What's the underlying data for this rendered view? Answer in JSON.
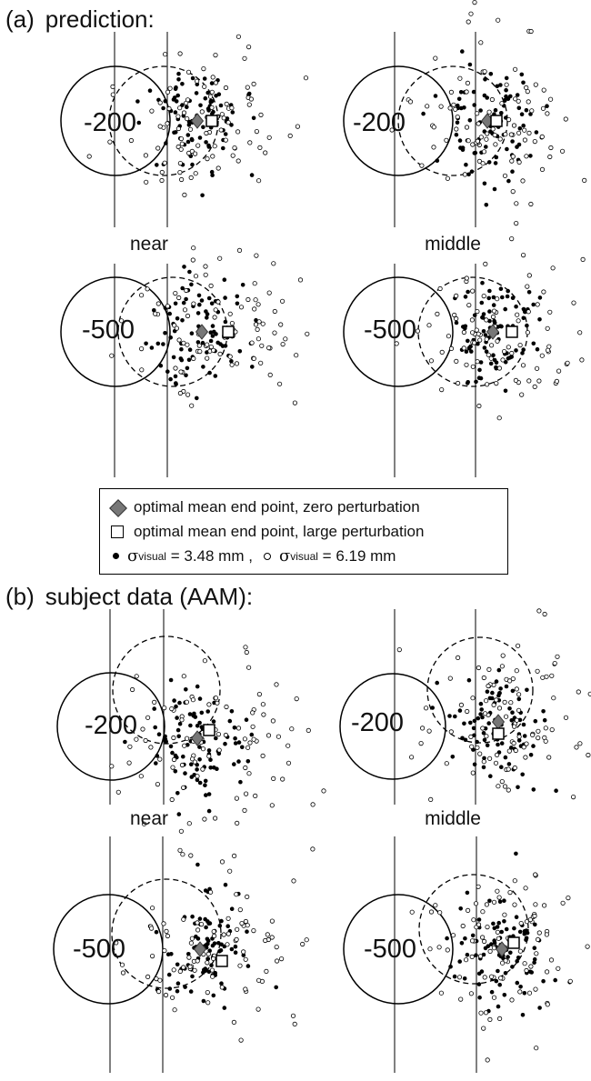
{
  "figure": {
    "section_a": {
      "tag": "(a)",
      "title": "prediction:"
    },
    "section_b": {
      "tag": "(b)",
      "title": "subject data (AAM):"
    },
    "panel_labels": {
      "a_top_left": "-200",
      "a_top_right": "-200",
      "a_bottom_left": "-500",
      "a_bottom_right": "-500",
      "b_top_left": "-200",
      "b_top_right": "-200",
      "b_bottom_left": "-500",
      "b_bottom_right": "-500"
    },
    "column_labels": {
      "a_left": "near",
      "a_right": "middle",
      "b_left": "near",
      "b_right": "middle"
    },
    "legend": {
      "zero_perturbation": "optimal mean end point, zero perturbation",
      "large_perturbation": "optimal mean end point, large perturbation",
      "sigma": "σ",
      "visual": "visual",
      "filled_value": "= 3.48 mm ,",
      "open_value": "= 6.19 mm"
    }
  }
}
